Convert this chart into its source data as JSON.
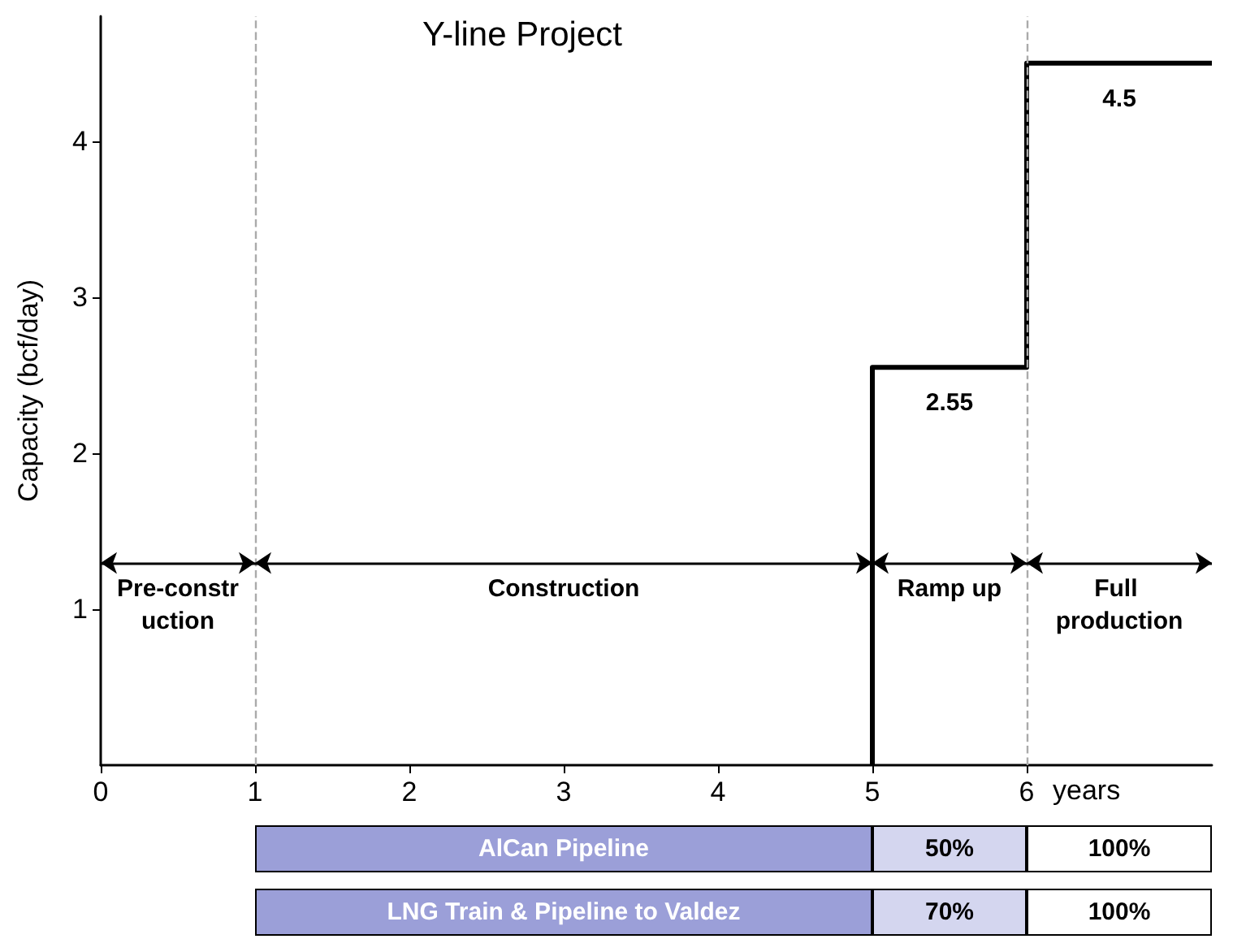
{
  "chart_data": [
    {
      "type": "step",
      "title": "Y-line Project",
      "xlabel": "years",
      "ylabel": "Capacity (bcf/day)",
      "x": [
        5,
        5,
        6,
        7.2
      ],
      "values": [
        0,
        2.55,
        4.5,
        4.5
      ],
      "color": "#000000",
      "line_style": "solid",
      "marker": "none",
      "xlim": [
        0,
        7.2
      ],
      "ylim": [
        0,
        4.8
      ],
      "xticks": [
        0,
        1,
        2,
        3,
        4,
        5,
        6
      ],
      "yticks": [
        1,
        2,
        3,
        4
      ],
      "ref_lines": [
        {
          "axis": "x",
          "value": 1,
          "color": "#aaaaaa",
          "line_style": "dashed"
        },
        {
          "axis": "x",
          "value": 6,
          "color": "#aaaaaa",
          "line_style": "dashed"
        }
      ],
      "annotations": [
        "Pre-construction",
        "Construction",
        "Ramp up",
        "Full production",
        {
          "text": "2.55",
          "x": 5.5,
          "y": 2.55
        },
        {
          "text": "4.5",
          "x": 6.6,
          "y": 4.5
        }
      ]
    },
    {
      "type": "other",
      "annotations": [
        "AlCan Pipeline",
        "50%",
        "100%",
        "LNG Train & Pipeline to Valdez",
        "70%",
        "100%"
      ]
    }
  ]
}
